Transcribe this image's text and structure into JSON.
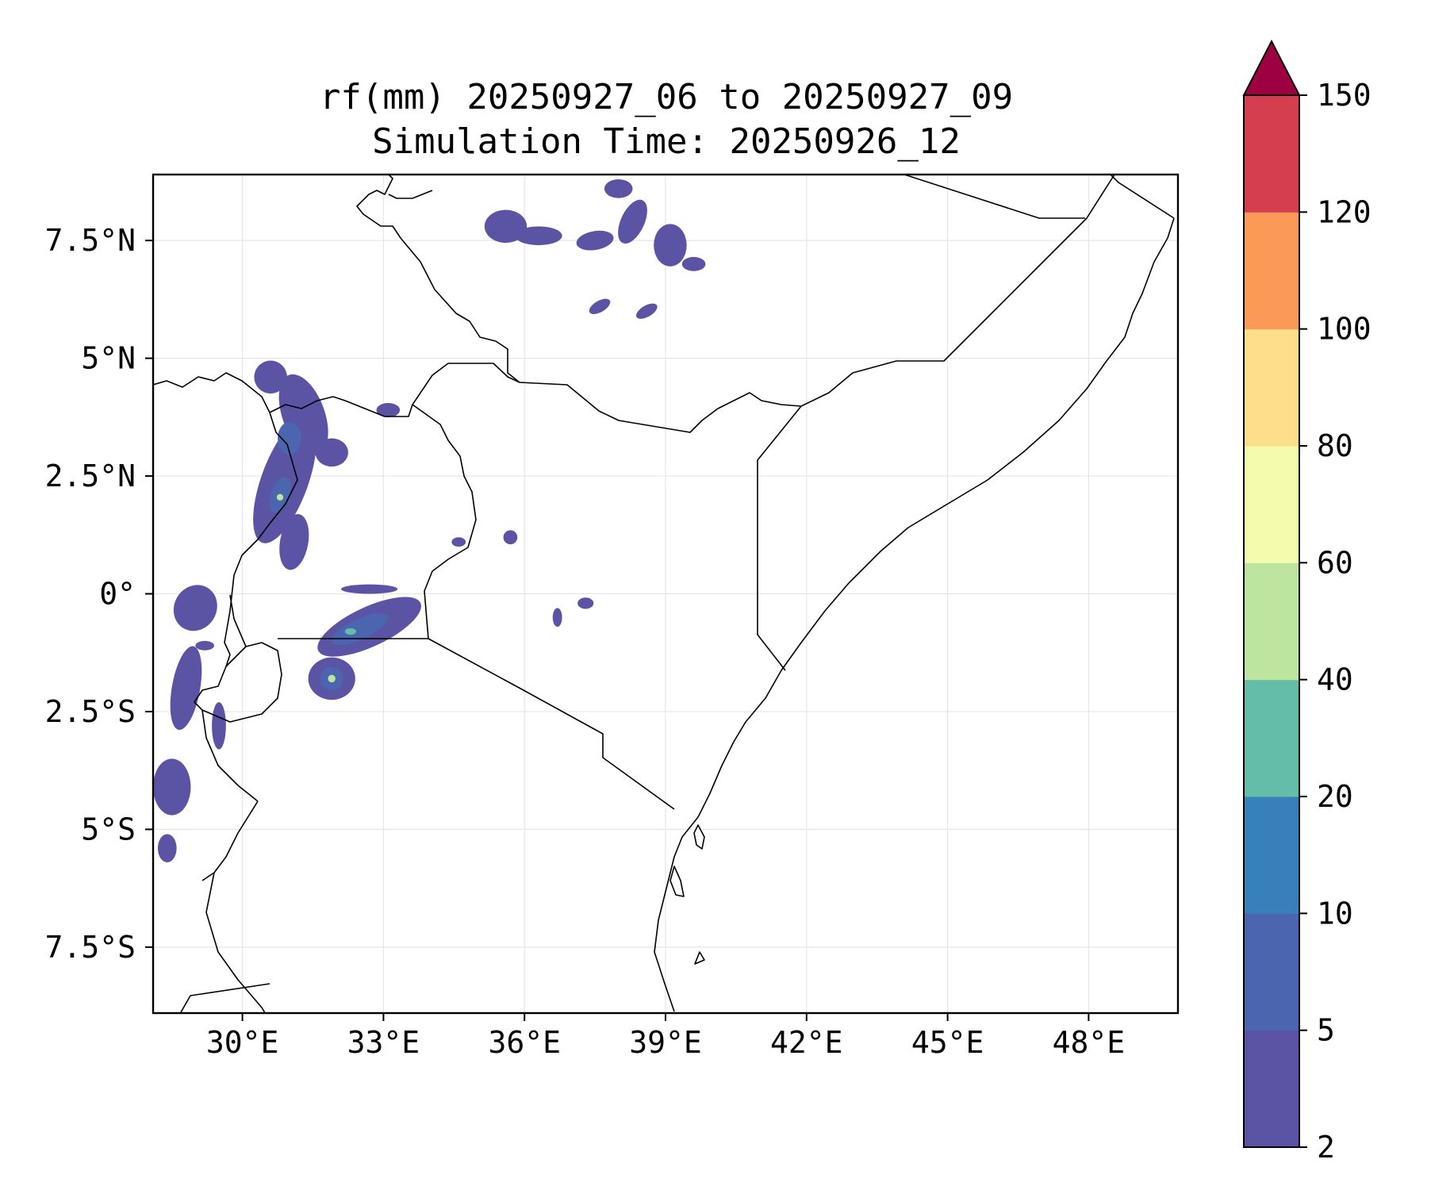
{
  "title": {
    "line1": "rf(mm) 20250927_06 to 20250927_09",
    "line2": "Simulation Time: 20250926_12"
  },
  "map": {
    "lon_range": [
      28.1,
      49.9
    ],
    "lat_range": [
      -8.9,
      8.9
    ],
    "x_ticks": [
      {
        "value": 30,
        "label": "30°E"
      },
      {
        "value": 33,
        "label": "33°E"
      },
      {
        "value": 36,
        "label": "36°E"
      },
      {
        "value": 39,
        "label": "39°E"
      },
      {
        "value": 42,
        "label": "42°E"
      },
      {
        "value": 45,
        "label": "45°E"
      },
      {
        "value": 48,
        "label": "48°E"
      }
    ],
    "y_ticks": [
      {
        "value": 7.5,
        "label": "7.5°N"
      },
      {
        "value": 5,
        "label": "5°N"
      },
      {
        "value": 2.5,
        "label": "2.5°N"
      },
      {
        "value": 0,
        "label": "0°"
      },
      {
        "value": -2.5,
        "label": "2.5°S"
      },
      {
        "value": -5,
        "label": "5°S"
      },
      {
        "value": -7.5,
        "label": "7.5°S"
      }
    ],
    "gridlines": true,
    "coast_color": "#000000",
    "grid_color": "#e6e6e6"
  },
  "colorbar": {
    "levels": [
      2,
      5,
      10,
      20,
      40,
      60,
      80,
      100,
      120,
      150
    ],
    "labels": [
      "2",
      "5",
      "10",
      "20",
      "40",
      "60",
      "80",
      "100",
      "120",
      "150"
    ],
    "colors": [
      "#5b53a4",
      "#4b65ae",
      "#3880b9",
      "#64bda8",
      "#bde5a0",
      "#f4fbad",
      "#fddf8b",
      "#fa9a56",
      "#d53e4f"
    ],
    "extend_color": "#9e0142",
    "extend": "max"
  },
  "rain_blobs": [
    {
      "lon": 31.3,
      "lat": 3.8,
      "rx": 0.45,
      "ry": 0.9,
      "rot": -20,
      "level": 0
    },
    {
      "lon": 30.9,
      "lat": 2.4,
      "rx": 0.5,
      "ry": 1.4,
      "rot": 20,
      "level": 0
    },
    {
      "lon": 31.1,
      "lat": 1.1,
      "rx": 0.3,
      "ry": 0.6,
      "rot": 10,
      "level": 0
    },
    {
      "lon": 30.6,
      "lat": 4.6,
      "rx": 0.35,
      "ry": 0.35,
      "rot": 0,
      "level": 0
    },
    {
      "lon": 31.9,
      "lat": 3.0,
      "rx": 0.35,
      "ry": 0.3,
      "rot": 0,
      "level": 0
    },
    {
      "lon": 31.0,
      "lat": 3.3,
      "rx": 0.25,
      "ry": 0.35,
      "rot": 0,
      "level": 1
    },
    {
      "lon": 30.8,
      "lat": 2.1,
      "rx": 0.2,
      "ry": 0.4,
      "rot": 20,
      "level": 1
    },
    {
      "lon": 30.8,
      "lat": 2.05,
      "rx": 0.07,
      "ry": 0.07,
      "rot": 0,
      "level": 4
    },
    {
      "lon": 33.1,
      "lat": 3.9,
      "rx": 0.25,
      "ry": 0.15,
      "rot": 0,
      "level": 0
    },
    {
      "lon": 29.0,
      "lat": -0.3,
      "rx": 0.45,
      "ry": 0.5,
      "rot": 30,
      "level": 0
    },
    {
      "lon": 28.8,
      "lat": -2.0,
      "rx": 0.3,
      "ry": 0.9,
      "rot": 10,
      "level": 0
    },
    {
      "lon": 28.5,
      "lat": -4.1,
      "rx": 0.4,
      "ry": 0.6,
      "rot": 0,
      "level": 0
    },
    {
      "lon": 28.4,
      "lat": -5.4,
      "rx": 0.2,
      "ry": 0.3,
      "rot": 0,
      "level": 0
    },
    {
      "lon": 29.5,
      "lat": -2.8,
      "rx": 0.15,
      "ry": 0.5,
      "rot": 0,
      "level": 0
    },
    {
      "lon": 32.7,
      "lat": -0.7,
      "rx": 1.2,
      "ry": 0.42,
      "rot": -25,
      "level": 0
    },
    {
      "lon": 31.9,
      "lat": -1.8,
      "rx": 0.5,
      "ry": 0.45,
      "rot": 0,
      "level": 0
    },
    {
      "lon": 32.5,
      "lat": -0.75,
      "rx": 0.65,
      "ry": 0.22,
      "rot": -25,
      "level": 1
    },
    {
      "lon": 31.9,
      "lat": -1.8,
      "rx": 0.25,
      "ry": 0.25,
      "rot": 0,
      "level": 1
    },
    {
      "lon": 32.3,
      "lat": -0.8,
      "rx": 0.12,
      "ry": 0.07,
      "rot": 0,
      "level": 3
    },
    {
      "lon": 31.9,
      "lat": -1.8,
      "rx": 0.08,
      "ry": 0.08,
      "rot": 0,
      "level": 4
    },
    {
      "lon": 32.7,
      "lat": 0.1,
      "rx": 0.6,
      "ry": 0.1,
      "rot": 0,
      "level": 0
    },
    {
      "lon": 35.6,
      "lat": 7.8,
      "rx": 0.45,
      "ry": 0.35,
      "rot": 0,
      "level": 0
    },
    {
      "lon": 36.3,
      "lat": 7.6,
      "rx": 0.5,
      "ry": 0.2,
      "rot": 0,
      "level": 0
    },
    {
      "lon": 37.5,
      "lat": 7.5,
      "rx": 0.4,
      "ry": 0.2,
      "rot": -10,
      "level": 0
    },
    {
      "lon": 38.3,
      "lat": 7.9,
      "rx": 0.25,
      "ry": 0.5,
      "rot": 25,
      "level": 0
    },
    {
      "lon": 39.1,
      "lat": 7.4,
      "rx": 0.35,
      "ry": 0.45,
      "rot": 0,
      "level": 0
    },
    {
      "lon": 38.0,
      "lat": 8.6,
      "rx": 0.3,
      "ry": 0.2,
      "rot": 0,
      "level": 0
    },
    {
      "lon": 39.6,
      "lat": 7.0,
      "rx": 0.25,
      "ry": 0.15,
      "rot": 0,
      "level": 0
    },
    {
      "lon": 38.6,
      "lat": 6.0,
      "rx": 0.25,
      "ry": 0.12,
      "rot": -30,
      "level": 0
    },
    {
      "lon": 37.6,
      "lat": 6.1,
      "rx": 0.25,
      "ry": 0.12,
      "rot": -30,
      "level": 0
    },
    {
      "lon": 35.7,
      "lat": 1.2,
      "rx": 0.15,
      "ry": 0.15,
      "rot": 0,
      "level": 0
    },
    {
      "lon": 34.6,
      "lat": 1.1,
      "rx": 0.15,
      "ry": 0.1,
      "rot": 0,
      "level": 0
    },
    {
      "lon": 37.3,
      "lat": -0.2,
      "rx": 0.17,
      "ry": 0.12,
      "rot": 0,
      "level": 0
    },
    {
      "lon": 36.7,
      "lat": -0.5,
      "rx": 0.1,
      "ry": 0.2,
      "rot": 0,
      "level": 0
    },
    {
      "lon": 29.2,
      "lat": -1.1,
      "rx": 0.2,
      "ry": 0.1,
      "rot": 0,
      "level": 0
    }
  ]
}
